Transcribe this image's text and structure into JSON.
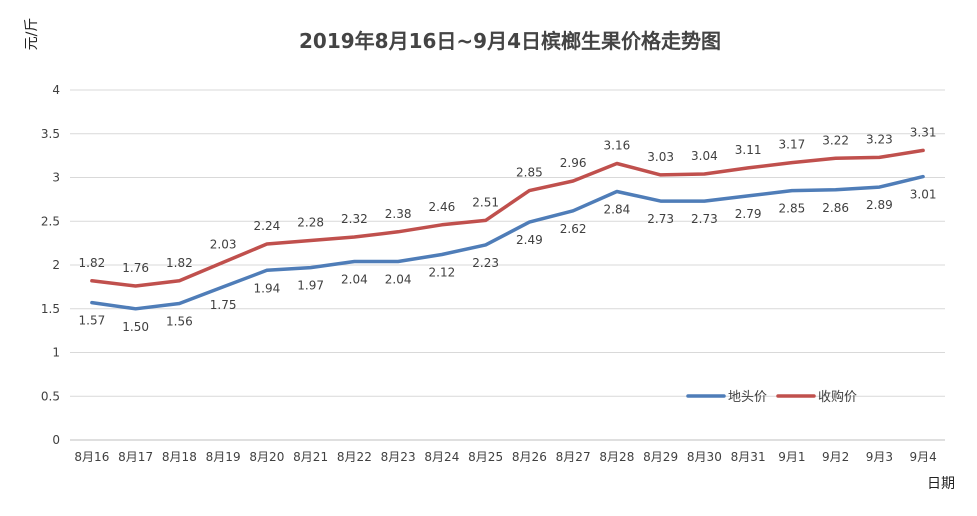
{
  "chart_data": {
    "type": "line",
    "title": "2019年8月16日~9月4日槟榔生果价格走势图",
    "xlabel": "日期",
    "ylabel": "元/斤",
    "ylim": [
      0,
      4
    ],
    "yticks": [
      "0",
      "0.5",
      "1",
      "1.5",
      "2",
      "2.5",
      "3",
      "3.5",
      "4"
    ],
    "grid": true,
    "legend_position": "bottom-right",
    "categories": [
      "8月16",
      "8月17",
      "8月18",
      "8月19",
      "8月20",
      "8月21",
      "8月22",
      "8月23",
      "8月24",
      "8月25",
      "8月26",
      "8月27",
      "8月28",
      "8月29",
      "8月30",
      "8月31",
      "9月1",
      "9月2",
      "9月3",
      "9月4"
    ],
    "series": [
      {
        "name": "地头价",
        "color": "#4f7db8",
        "values": [
          1.57,
          1.5,
          1.56,
          1.75,
          1.94,
          1.97,
          2.04,
          2.04,
          2.12,
          2.23,
          2.49,
          2.62,
          2.84,
          2.73,
          2.73,
          2.79,
          2.85,
          2.86,
          2.89,
          3.01
        ],
        "labels": [
          "1.57",
          "1.50",
          "1.56",
          "1.75",
          "1.94",
          "1.97",
          "2.04",
          "2.04",
          "2.12",
          "2.23",
          "2.49",
          "2.62",
          "2.84",
          "2.73",
          "2.73",
          "2.79",
          "2.85",
          "2.86",
          "2.89",
          "3.01"
        ]
      },
      {
        "name": "收购价",
        "color": "#c0504d",
        "values": [
          1.82,
          1.76,
          1.82,
          2.03,
          2.24,
          2.28,
          2.32,
          2.38,
          2.46,
          2.51,
          2.85,
          2.96,
          3.16,
          3.03,
          3.04,
          3.11,
          3.17,
          3.22,
          3.23,
          3.31
        ],
        "labels": [
          "1.82",
          "1.76",
          "1.82",
          "2.03",
          "2.24",
          "2.28",
          "2.32",
          "2.38",
          "2.46",
          "2.51",
          "2.85",
          "2.96",
          "3.16",
          "3.03",
          "3.04",
          "3.11",
          "3.17",
          "3.22",
          "3.23",
          "3.31"
        ]
      }
    ]
  }
}
